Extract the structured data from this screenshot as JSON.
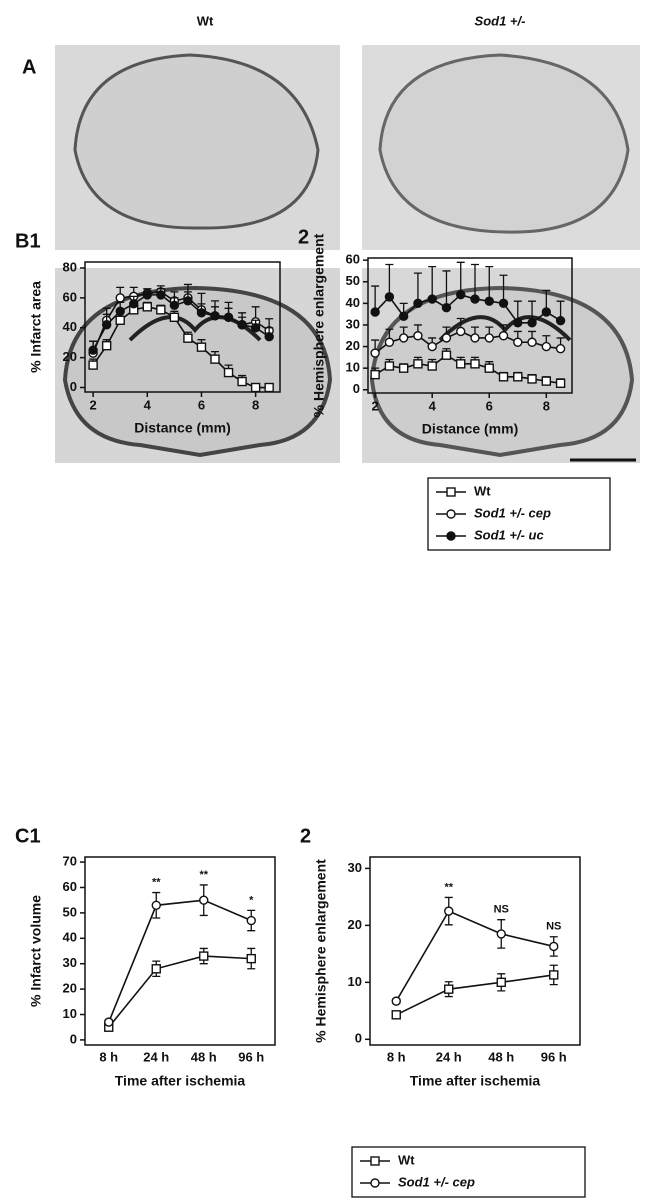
{
  "header": {
    "labels": [
      "Wt",
      "Sod1 +/-"
    ],
    "panel": "A"
  },
  "chart_data": [
    {
      "type": "line",
      "panel": "B1",
      "ylabel": "% Infarct area",
      "xlabel": "Distance (mm)",
      "x": [
        2,
        2.5,
        3,
        3.5,
        4,
        4.5,
        5,
        5.5,
        6,
        6.5,
        7,
        7.5,
        8,
        8.5
      ],
      "xlim": [
        1.7,
        8.9
      ],
      "xticks": [
        2,
        4,
        6,
        8
      ],
      "ylim": [
        -3,
        84
      ],
      "yticks": [
        0,
        20,
        40,
        60,
        80
      ],
      "error_direction": "up",
      "series": [
        {
          "marker": "square",
          "color": "#111",
          "values": [
            15,
            28,
            45,
            52,
            54,
            52,
            47,
            33,
            27,
            19,
            10,
            4,
            0,
            0
          ],
          "errors": [
            4,
            4,
            5,
            4,
            3,
            3,
            4,
            4,
            5,
            5,
            5,
            4,
            1,
            1
          ]
        },
        {
          "marker": "open-circle",
          "color": "#111",
          "values": [
            23,
            45,
            60,
            61,
            63,
            64,
            58,
            60,
            52,
            48,
            47,
            42,
            44,
            38
          ],
          "errors": [
            8,
            8,
            7,
            6,
            3,
            4,
            6,
            9,
            11,
            10,
            10,
            8,
            10,
            8
          ]
        },
        {
          "marker": "filled-circle",
          "color": "#111",
          "values": [
            25,
            42,
            51,
            56,
            62,
            62,
            55,
            58,
            50,
            48,
            47,
            42,
            40,
            34
          ],
          "errors": [
            6,
            7,
            6,
            5,
            4,
            4,
            5,
            6,
            6,
            6,
            6,
            5,
            5,
            6
          ]
        }
      ]
    },
    {
      "type": "line",
      "panel": "2",
      "ylabel": "% Hemisphere enlargement",
      "xlabel": "Distance (mm)",
      "x": [
        2,
        2.5,
        3,
        3.5,
        4,
        4.5,
        5,
        5.5,
        6,
        6.5,
        7,
        7.5,
        8,
        8.5
      ],
      "xlim": [
        1.75,
        8.9
      ],
      "xticks": [
        2,
        4,
        6,
        8
      ],
      "ylim": [
        -1.5,
        61
      ],
      "yticks": [
        0,
        10,
        20,
        30,
        40,
        50,
        60
      ],
      "error_direction": "up",
      "legend": "below",
      "series": [
        {
          "name": "Wt",
          "marker": "square",
          "color": "#111",
          "values": [
            7,
            11,
            10,
            12,
            11,
            16,
            12,
            12,
            10,
            6,
            6,
            5,
            4,
            3
          ],
          "errors": [
            3,
            3,
            2,
            3,
            3,
            3,
            3,
            3,
            3,
            2,
            2,
            2,
            2,
            2
          ]
        },
        {
          "name": "Sod1 +/- cep",
          "marker": "open-circle",
          "color": "#111",
          "values": [
            17,
            22,
            24,
            25,
            20,
            24,
            27,
            24,
            24,
            25,
            22,
            22,
            20,
            19
          ],
          "errors": [
            6,
            6,
            5,
            5,
            4,
            5,
            6,
            5,
            5,
            5,
            5,
            5,
            5,
            5
          ]
        },
        {
          "name": "Sod1 +/- uc",
          "marker": "filled-circle",
          "color": "#111",
          "values": [
            36,
            43,
            34,
            40,
            42,
            38,
            44,
            42,
            41,
            40,
            31,
            31,
            36,
            32
          ],
          "errors": [
            12,
            15,
            6,
            14,
            15,
            17,
            15,
            16,
            16,
            13,
            10,
            10,
            10,
            9
          ]
        }
      ]
    },
    {
      "type": "line",
      "panel": "C1",
      "ylabel": "% Infarct volume",
      "xlabel": "Time after ischemia",
      "categories": [
        "8 h",
        "24 h",
        "48 h",
        "96 h"
      ],
      "ylim": [
        -2,
        72
      ],
      "yticks": [
        0,
        10,
        20,
        30,
        40,
        50,
        60,
        70
      ],
      "error_direction": "both",
      "annotations": [
        null,
        "**",
        "**",
        "*"
      ],
      "series": [
        {
          "marker": "square",
          "color": "#111",
          "values": [
            5,
            28,
            33,
            32
          ],
          "errors": [
            1,
            3,
            3,
            4
          ]
        },
        {
          "marker": "open-circle",
          "color": "#111",
          "values": [
            7,
            53,
            55,
            47
          ],
          "errors": [
            1,
            5,
            6,
            4
          ]
        }
      ]
    },
    {
      "type": "line",
      "panel": "2",
      "ylabel": "% Hemisphere enlargement",
      "xlabel": "Time after ischemia",
      "categories": [
        "8 h",
        "24 h",
        "48 h",
        "96 h"
      ],
      "ylim": [
        -1,
        32
      ],
      "yticks": [
        0,
        10,
        20,
        30
      ],
      "error_direction": "both",
      "legend": "below",
      "annotations": [
        null,
        "**",
        "NS",
        "NS"
      ],
      "series": [
        {
          "name": "Wt",
          "marker": "square",
          "color": "#111",
          "values": [
            4.3,
            8.8,
            10,
            11.3
          ],
          "errors": [
            0.5,
            1.3,
            1.5,
            1.7
          ]
        },
        {
          "name": "Sod1 +/- cep",
          "marker": "open-circle",
          "color": "#111",
          "values": [
            6.7,
            22.5,
            18.5,
            16.3
          ],
          "errors": [
            0.4,
            2.4,
            2.5,
            1.7
          ]
        }
      ]
    }
  ]
}
